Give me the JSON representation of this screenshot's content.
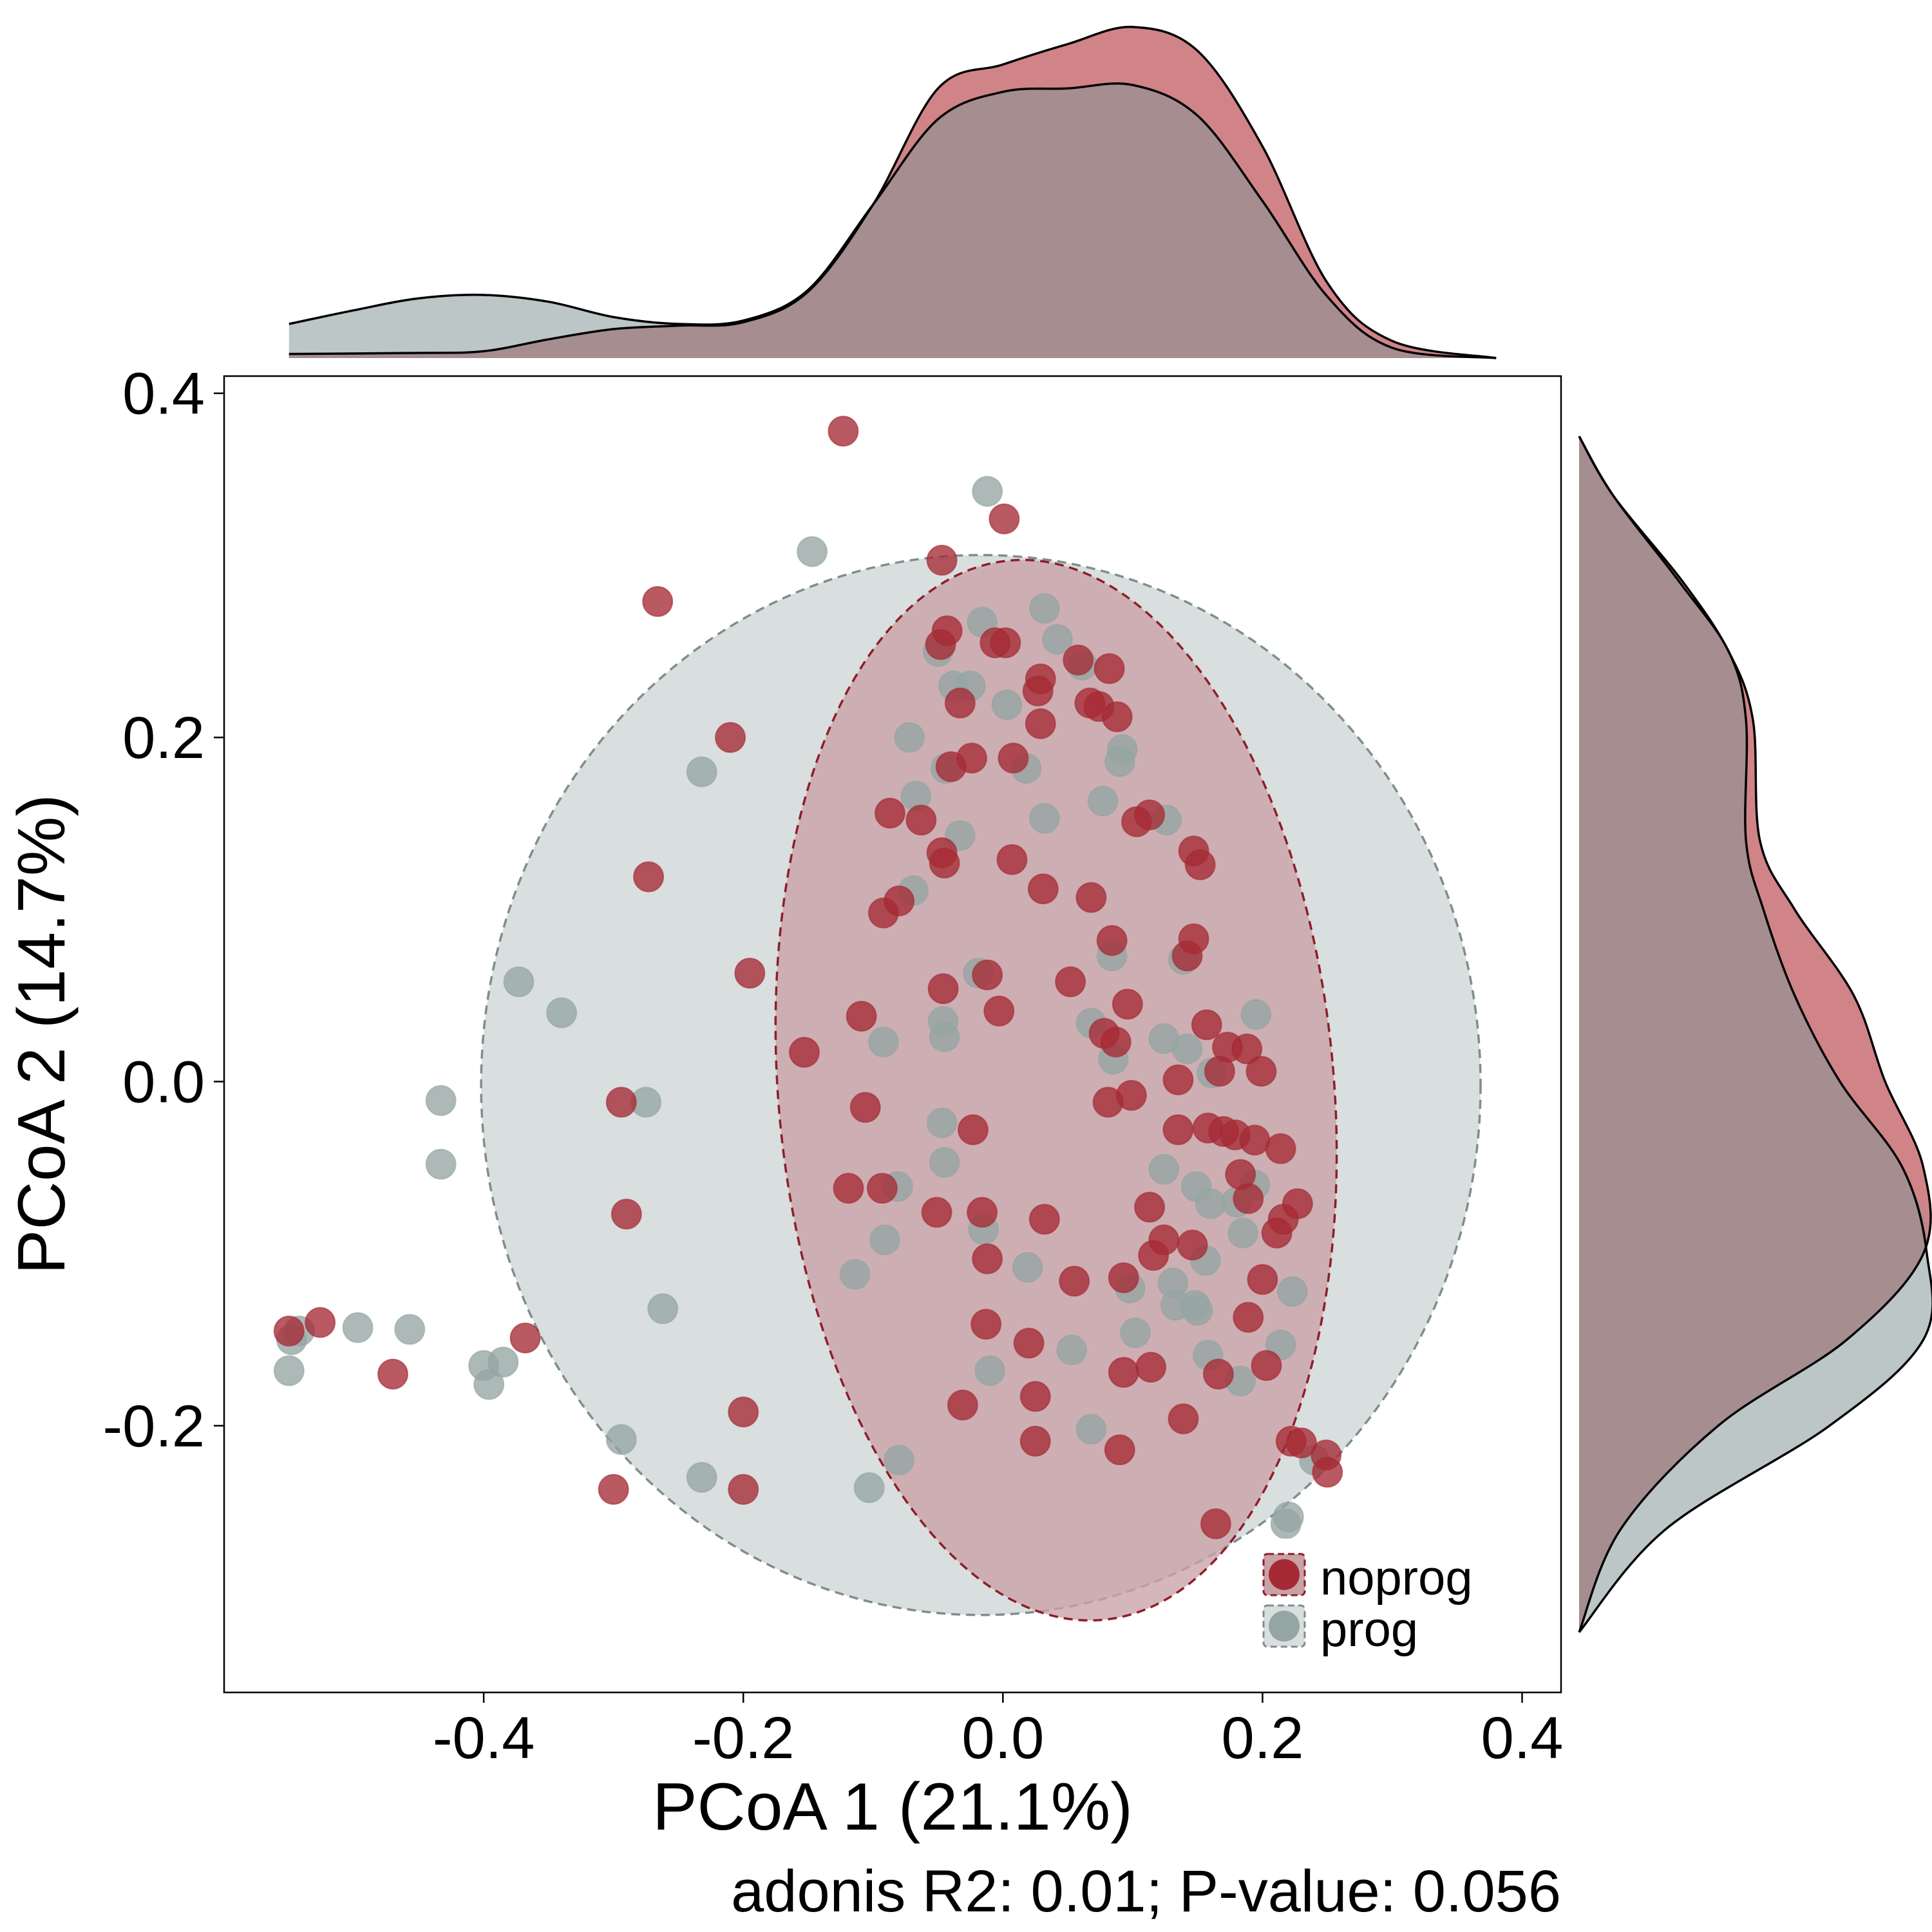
{
  "chart_data": {
    "type": "scatter",
    "xlabel": "PCoA 1 (21.1%)",
    "ylabel": "PCoA 2 (14.7%)",
    "subtitle": "adonis R2: 0.01; P-value: 0.056",
    "xlim": [
      -0.6,
      0.43
    ],
    "ylim": [
      -0.355,
      0.41
    ],
    "x_ticks": [
      -0.4,
      -0.2,
      0.0,
      0.2,
      0.4
    ],
    "x_tick_labels": [
      "-0.4",
      "-0.2",
      "0.0",
      "0.2",
      "0.4"
    ],
    "y_ticks": [
      -0.2,
      0.0,
      0.2,
      0.4
    ],
    "y_tick_labels": [
      "-0.2",
      "0.0",
      "0.2",
      "0.4"
    ],
    "grid": false,
    "legend_position": "bottom-right",
    "colors": {
      "noprog": "#A52A35",
      "prog": "#95A5A3"
    },
    "series": [
      {
        "name": "noprog",
        "ellipse": {
          "cx": 0.041,
          "cy": -0.005,
          "rx": 0.214,
          "ry": 0.309,
          "angle_deg": 5
        },
        "points": [
          [
            -0.123,
            0.378
          ],
          [
            0.001,
            0.327
          ],
          [
            -0.266,
            0.279
          ],
          [
            -0.047,
            0.303
          ],
          [
            -0.043,
            0.262
          ],
          [
            -0.048,
            0.254
          ],
          [
            -0.006,
            0.255
          ],
          [
            0.002,
            0.255
          ],
          [
            0.029,
            0.234
          ],
          [
            0.058,
            0.245
          ],
          [
            0.082,
            0.24
          ],
          [
            0.027,
            0.227
          ],
          [
            0.067,
            0.22
          ],
          [
            0.074,
            0.218
          ],
          [
            0.088,
            0.212
          ],
          [
            -0.033,
            0.22
          ],
          [
            0.029,
            0.208
          ],
          [
            -0.21,
            0.2
          ],
          [
            -0.024,
            0.188
          ],
          [
            0.008,
            0.188
          ],
          [
            -0.04,
            0.183
          ],
          [
            0.103,
            0.151
          ],
          [
            0.113,
            0.155
          ],
          [
            -0.087,
            0.156
          ],
          [
            -0.063,
            0.152
          ],
          [
            -0.047,
            0.133
          ],
          [
            -0.045,
            0.127
          ],
          [
            0.007,
            0.129
          ],
          [
            0.147,
            0.134
          ],
          [
            0.152,
            0.126
          ],
          [
            -0.273,
            0.119
          ],
          [
            0.031,
            0.112
          ],
          [
            0.068,
            0.107
          ],
          [
            -0.08,
            0.105
          ],
          [
            -0.092,
            0.098
          ],
          [
            0.084,
            0.082
          ],
          [
            0.147,
            0.083
          ],
          [
            0.142,
            0.073
          ],
          [
            -0.195,
            0.063
          ],
          [
            -0.012,
            0.062
          ],
          [
            0.052,
            0.058
          ],
          [
            -0.046,
            0.054
          ],
          [
            0.096,
            0.045
          ],
          [
            -0.109,
            0.038
          ],
          [
            -0.003,
            0.041
          ],
          [
            0.078,
            0.028
          ],
          [
            0.157,
            0.033
          ],
          [
            0.087,
            0.023
          ],
          [
            -0.153,
            0.017
          ],
          [
            0.173,
            0.02
          ],
          [
            0.188,
            0.019
          ],
          [
            0.135,
            0.001
          ],
          [
            0.167,
            0.006
          ],
          [
            0.199,
            0.006
          ],
          [
            -0.294,
            -0.012
          ],
          [
            0.099,
            -0.008
          ],
          [
            0.081,
            -0.012
          ],
          [
            -0.106,
            -0.015
          ],
          [
            0.135,
            -0.028
          ],
          [
            0.158,
            -0.027
          ],
          [
            0.17,
            -0.029
          ],
          [
            0.179,
            -0.031
          ],
          [
            -0.023,
            -0.028
          ],
          [
            0.194,
            -0.034
          ],
          [
            0.214,
            -0.039
          ],
          [
            0.183,
            -0.054
          ],
          [
            0.189,
            -0.068
          ],
          [
            -0.119,
            -0.062
          ],
          [
            -0.093,
            -0.062
          ],
          [
            -0.051,
            -0.076
          ],
          [
            -0.016,
            -0.076
          ],
          [
            0.113,
            -0.073
          ],
          [
            0.227,
            -0.071
          ],
          [
            0.216,
            -0.08
          ],
          [
            0.032,
            -0.08
          ],
          [
            -0.29,
            -0.077
          ],
          [
            0.211,
            -0.088
          ],
          [
            0.124,
            -0.092
          ],
          [
            0.116,
            -0.101
          ],
          [
            0.146,
            -0.095
          ],
          [
            -0.012,
            -0.103
          ],
          [
            0.093,
            -0.114
          ],
          [
            0.055,
            -0.116
          ],
          [
            0.2,
            -0.115
          ],
          [
            0.189,
            -0.137
          ],
          [
            -0.013,
            -0.141
          ],
          [
            0.02,
            -0.152
          ],
          [
            -0.368,
            -0.149
          ],
          [
            -0.55,
            -0.145
          ],
          [
            -0.526,
            -0.14
          ],
          [
            -0.47,
            -0.17
          ],
          [
            0.093,
            -0.169
          ],
          [
            0.114,
            -0.166
          ],
          [
            0.166,
            -0.17
          ],
          [
            0.203,
            -0.165
          ],
          [
            0.025,
            -0.183
          ],
          [
            -0.031,
            -0.188
          ],
          [
            -0.2,
            -0.192
          ],
          [
            0.139,
            -0.196
          ],
          [
            0.025,
            -0.209
          ],
          [
            0.09,
            -0.214
          ],
          [
            0.222,
            -0.209
          ],
          [
            0.23,
            -0.21
          ],
          [
            0.249,
            -0.217
          ],
          [
            0.25,
            -0.227
          ],
          [
            -0.3,
            -0.237
          ],
          [
            -0.2,
            -0.237
          ],
          [
            0.164,
            -0.257
          ]
        ]
      },
      {
        "name": "prog",
        "ellipse": {
          "cx": -0.017,
          "cy": -0.002,
          "rx": 0.385,
          "ry": 0.308,
          "angle_deg": 0
        },
        "points": [
          [
            -0.012,
            0.343
          ],
          [
            -0.147,
            0.308
          ],
          [
            -0.016,
            0.267
          ],
          [
            0.032,
            0.275
          ],
          [
            0.042,
            0.257
          ],
          [
            -0.05,
            0.25
          ],
          [
            -0.038,
            0.23
          ],
          [
            -0.025,
            0.23
          ],
          [
            0.003,
            0.219
          ],
          [
            0.061,
            0.242
          ],
          [
            -0.072,
            0.2
          ],
          [
            -0.044,
            0.182
          ],
          [
            0.018,
            0.182
          ],
          [
            0.092,
            0.193
          ],
          [
            0.09,
            0.186
          ],
          [
            -0.232,
            0.18
          ],
          [
            -0.067,
            0.166
          ],
          [
            0.077,
            0.163
          ],
          [
            -0.033,
            0.143
          ],
          [
            0.032,
            0.153
          ],
          [
            0.126,
            0.152
          ],
          [
            -0.069,
            0.111
          ],
          [
            -0.019,
            0.063
          ],
          [
            0.084,
            0.073
          ],
          [
            0.139,
            0.071
          ],
          [
            -0.373,
            0.058
          ],
          [
            -0.34,
            0.04
          ],
          [
            0.068,
            0.034
          ],
          [
            -0.046,
            0.035
          ],
          [
            -0.092,
            0.023
          ],
          [
            -0.045,
            0.026
          ],
          [
            0.124,
            0.025
          ],
          [
            0.195,
            0.039
          ],
          [
            0.085,
            0.013
          ],
          [
            0.142,
            0.019
          ],
          [
            0.161,
            0.005
          ],
          [
            -0.433,
            -0.011
          ],
          [
            -0.275,
            -0.012
          ],
          [
            -0.047,
            -0.024
          ],
          [
            -0.045,
            -0.047
          ],
          [
            0.124,
            -0.051
          ],
          [
            -0.433,
            -0.048
          ],
          [
            0.149,
            -0.061
          ],
          [
            0.16,
            -0.071
          ],
          [
            0.194,
            -0.06
          ],
          [
            0.18,
            -0.07
          ],
          [
            0.185,
            -0.088
          ],
          [
            -0.081,
            -0.061
          ],
          [
            -0.091,
            -0.092
          ],
          [
            -0.015,
            -0.086
          ],
          [
            -0.114,
            -0.112
          ],
          [
            0.019,
            -0.108
          ],
          [
            0.156,
            -0.104
          ],
          [
            0.098,
            -0.12
          ],
          [
            0.131,
            -0.117
          ],
          [
            0.133,
            -0.13
          ],
          [
            0.148,
            -0.13
          ],
          [
            0.223,
            -0.122
          ],
          [
            0.15,
            -0.133
          ],
          [
            0.158,
            -0.159
          ],
          [
            0.102,
            -0.146
          ],
          [
            0.214,
            -0.153
          ],
          [
            -0.262,
            -0.132
          ],
          [
            -0.542,
            -0.145
          ],
          [
            -0.548,
            -0.15
          ],
          [
            -0.497,
            -0.143
          ],
          [
            -0.457,
            -0.144
          ],
          [
            -0.4,
            -0.165
          ],
          [
            -0.385,
            -0.163
          ],
          [
            -0.396,
            -0.176
          ],
          [
            -0.55,
            -0.168
          ],
          [
            0.053,
            -0.156
          ],
          [
            -0.01,
            -0.168
          ],
          [
            0.183,
            -0.174
          ],
          [
            0.068,
            -0.202
          ],
          [
            -0.294,
            -0.208
          ],
          [
            -0.232,
            -0.23
          ],
          [
            -0.103,
            -0.236
          ],
          [
            -0.08,
            -0.22
          ],
          [
            0.24,
            -0.22
          ],
          [
            0.22,
            -0.253
          ],
          [
            0.218,
            -0.257
          ]
        ]
      }
    ],
    "density_x": {
      "range": [
        -0.55,
        0.38
      ],
      "noprog": [
        [
          -0.55,
          0.012
        ],
        [
          -0.45,
          0.015
        ],
        [
          -0.4,
          0.02
        ],
        [
          -0.35,
          0.055
        ],
        [
          -0.3,
          0.085
        ],
        [
          -0.25,
          0.095
        ],
        [
          -0.2,
          0.105
        ],
        [
          -0.15,
          0.195
        ],
        [
          -0.1,
          0.45
        ],
        [
          -0.05,
          0.79
        ],
        [
          0.0,
          0.86
        ],
        [
          0.05,
          0.92
        ],
        [
          0.1,
          0.97
        ],
        [
          0.15,
          0.9
        ],
        [
          0.2,
          0.62
        ],
        [
          0.25,
          0.22
        ],
        [
          0.3,
          0.05
        ],
        [
          0.38,
          0.0
        ]
      ],
      "prog": [
        [
          -0.55,
          0.1
        ],
        [
          -0.5,
          0.14
        ],
        [
          -0.45,
          0.175
        ],
        [
          -0.4,
          0.185
        ],
        [
          -0.35,
          0.165
        ],
        [
          -0.3,
          0.12
        ],
        [
          -0.25,
          0.1
        ],
        [
          -0.2,
          0.11
        ],
        [
          -0.15,
          0.2
        ],
        [
          -0.1,
          0.45
        ],
        [
          -0.05,
          0.7
        ],
        [
          0.0,
          0.78
        ],
        [
          0.05,
          0.79
        ],
        [
          0.1,
          0.8
        ],
        [
          0.15,
          0.71
        ],
        [
          0.2,
          0.46
        ],
        [
          0.25,
          0.18
        ],
        [
          0.3,
          0.03
        ],
        [
          0.38,
          0.0
        ]
      ]
    },
    "density_y": {
      "range": [
        -0.32,
        0.375
      ],
      "noprog": [
        [
          0.375,
          0.0
        ],
        [
          0.34,
          0.1
        ],
        [
          0.29,
          0.3
        ],
        [
          0.25,
          0.43
        ],
        [
          0.21,
          0.5
        ],
        [
          0.14,
          0.52
        ],
        [
          0.1,
          0.62
        ],
        [
          0.05,
          0.79
        ],
        [
          0.0,
          0.88
        ],
        [
          -0.05,
          0.99
        ],
        [
          -0.1,
          0.99
        ],
        [
          -0.15,
          0.77
        ],
        [
          -0.2,
          0.4
        ],
        [
          -0.26,
          0.12
        ],
        [
          -0.32,
          0.0
        ]
      ],
      "prog": [
        [
          0.375,
          0.0
        ],
        [
          0.34,
          0.1
        ],
        [
          0.29,
          0.29
        ],
        [
          0.25,
          0.43
        ],
        [
          0.21,
          0.48
        ],
        [
          0.14,
          0.48
        ],
        [
          0.1,
          0.53
        ],
        [
          0.05,
          0.62
        ],
        [
          0.0,
          0.75
        ],
        [
          -0.05,
          0.93
        ],
        [
          -0.1,
          1.0
        ],
        [
          -0.15,
          0.99
        ],
        [
          -0.2,
          0.72
        ],
        [
          -0.26,
          0.25
        ],
        [
          -0.32,
          0.0
        ]
      ]
    }
  }
}
